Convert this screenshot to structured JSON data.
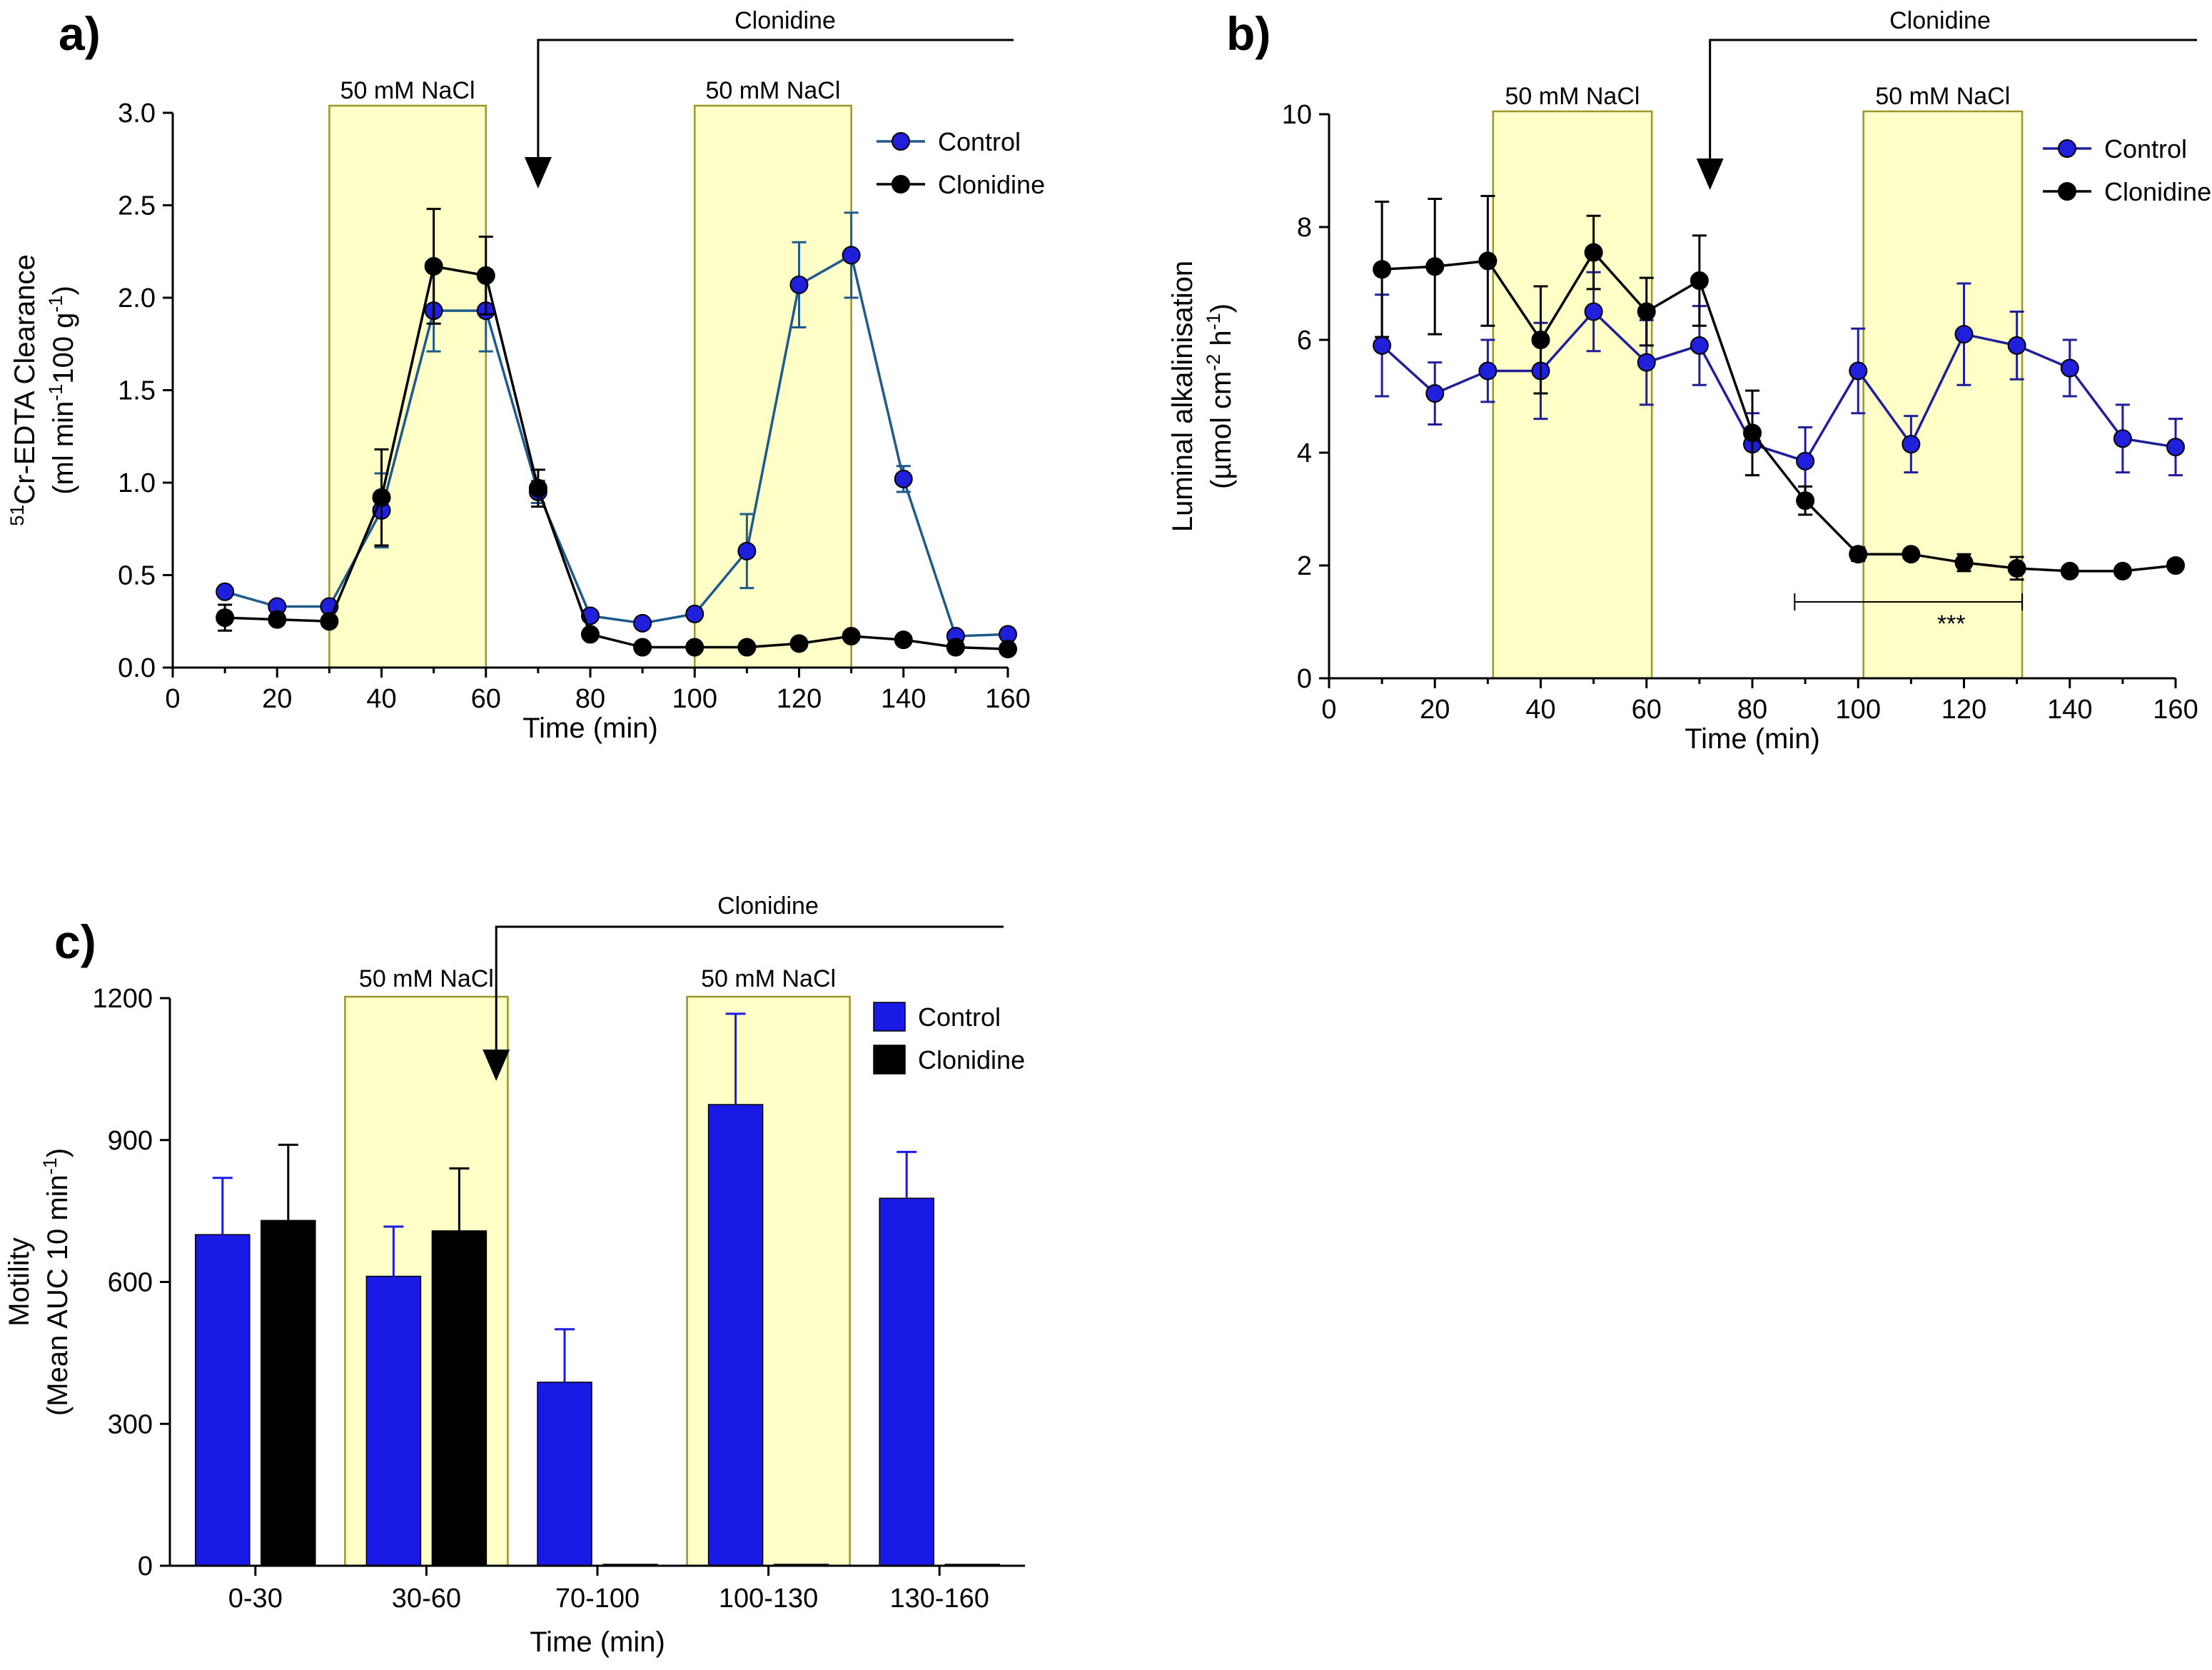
{
  "chart_data": [
    {
      "id": "a",
      "type": "line",
      "panel_label": "a)",
      "xlabel": "Time (min)",
      "ylabel_line1": "Cr-EDTA Clearance",
      "ylabel_sup1": "51",
      "ylabel_line2_parts": [
        "(ml min",
        "-1",
        "100 g",
        "-1",
        ")"
      ],
      "xlim": [
        0,
        160
      ],
      "ylim": [
        0,
        3.0
      ],
      "xticks": [
        0,
        20,
        40,
        60,
        80,
        100,
        120,
        140,
        160
      ],
      "xtick_labels": [
        "0",
        "20",
        "40",
        "60",
        "80",
        "100",
        "120",
        "140",
        "160"
      ],
      "yticks": [
        0,
        0.5,
        1.0,
        1.5,
        2.0,
        2.5,
        3.0
      ],
      "ytick_labels": [
        "0.0",
        "0.5",
        "1.0",
        "1.5",
        "2.0",
        "2.5",
        "3.0"
      ],
      "grid": false,
      "legend_position": "top-right",
      "bands": [
        {
          "start": 30,
          "end": 60,
          "label": "50 mM NaCl"
        },
        {
          "start": 100,
          "end": 130,
          "label": "50 mM NaCl"
        }
      ],
      "treatment": {
        "label": "Clonidine",
        "start": 70
      },
      "series": [
        {
          "name": "Control",
          "color": "#1f1fdc",
          "line_color": "#1f5a8c",
          "x": [
            10,
            20,
            30,
            40,
            50,
            60,
            70,
            80,
            90,
            100,
            110,
            120,
            130,
            140,
            150,
            160
          ],
          "y": [
            0.41,
            0.33,
            0.33,
            0.85,
            1.93,
            1.93,
            0.95,
            0.28,
            0.24,
            0.29,
            0.63,
            2.07,
            2.23,
            1.02,
            0.17,
            0.18
          ],
          "err": [
            0.02,
            0.02,
            0.02,
            0.2,
            0.22,
            0.22,
            0.06,
            0.02,
            0.02,
            0.02,
            0.2,
            0.23,
            0.23,
            0.07,
            0.02,
            0.02
          ]
        },
        {
          "name": "Clonidine",
          "color": "#000000",
          "line_color": "#000000",
          "x": [
            10,
            20,
            30,
            40,
            50,
            60,
            70,
            80,
            90,
            100,
            110,
            120,
            130,
            140,
            150,
            160
          ],
          "y": [
            0.27,
            0.26,
            0.25,
            0.92,
            2.17,
            2.12,
            0.97,
            0.18,
            0.11,
            0.11,
            0.11,
            0.13,
            0.17,
            0.15,
            0.11,
            0.1
          ],
          "err": [
            0.07,
            0.02,
            0.02,
            0.26,
            0.31,
            0.21,
            0.1,
            0.02,
            0.01,
            0.01,
            0.01,
            0.01,
            0.02,
            0.01,
            0.01,
            0.01
          ]
        }
      ]
    },
    {
      "id": "b",
      "type": "line",
      "panel_label": "b)",
      "xlabel": "Time (min)",
      "ylabel_line1": "Luminal alkalinisation",
      "ylabel_line2_parts": [
        "(µmol cm",
        "-2",
        " h",
        "-1",
        ")"
      ],
      "xlim": [
        0,
        160
      ],
      "ylim": [
        0,
        10
      ],
      "xticks": [
        0,
        20,
        40,
        60,
        80,
        100,
        120,
        140,
        160
      ],
      "xtick_labels": [
        "0",
        "20",
        "40",
        "60",
        "80",
        "100",
        "120",
        "140",
        "160"
      ],
      "yticks": [
        0,
        2,
        4,
        6,
        8,
        10
      ],
      "ytick_labels": [
        "0",
        "2",
        "4",
        "6",
        "8",
        "10"
      ],
      "grid": false,
      "legend_position": "top-right",
      "bands": [
        {
          "start": 31,
          "end": 61,
          "label": "50 mM NaCl"
        },
        {
          "start": 101,
          "end": 131,
          "label": "50 mM NaCl"
        }
      ],
      "treatment": {
        "label": "Clonidine",
        "start": 72
      },
      "significance": {
        "label": "***",
        "start": 88,
        "end": 131,
        "y": 1.0
      },
      "series": [
        {
          "name": "Control",
          "color": "#1f1fdc",
          "line_color": "#1f1f9c",
          "x": [
            10,
            20,
            30,
            40,
            50,
            60,
            70,
            80,
            90,
            100,
            110,
            120,
            130,
            140,
            150,
            160
          ],
          "y": [
            5.9,
            5.05,
            5.45,
            5.45,
            6.5,
            5.6,
            5.9,
            4.15,
            3.85,
            5.45,
            4.15,
            6.1,
            5.9,
            5.5,
            4.25,
            4.1
          ],
          "err": [
            0.9,
            0.55,
            0.55,
            0.85,
            0.7,
            0.75,
            0.7,
            0.55,
            0.6,
            0.75,
            0.5,
            0.9,
            0.6,
            0.5,
            0.6,
            0.5
          ]
        },
        {
          "name": "Clonidine",
          "color": "#000000",
          "line_color": "#000000",
          "x": [
            10,
            20,
            30,
            40,
            50,
            60,
            70,
            80,
            90,
            100,
            110,
            120,
            130,
            140,
            150,
            160
          ],
          "y": [
            7.25,
            7.3,
            7.4,
            6.0,
            7.55,
            6.5,
            7.05,
            4.35,
            3.15,
            2.2,
            2.2,
            2.05,
            1.95,
            1.9,
            1.9,
            2.0
          ],
          "err": [
            1.2,
            1.2,
            1.15,
            0.95,
            0.65,
            0.6,
            0.8,
            0.75,
            0.25,
            0.12,
            0.08,
            0.15,
            0.2,
            0.08,
            0.08,
            0.08
          ]
        }
      ]
    },
    {
      "id": "c",
      "type": "bar",
      "panel_label": "c)",
      "xlabel": "Time (min)",
      "ylabel_line1": "Motility",
      "ylabel_line2_parts": [
        "(Mean AUC 10 min",
        "-1",
        ")"
      ],
      "ylim": [
        0,
        1200
      ],
      "yticks": [
        0,
        300,
        600,
        900,
        1200
      ],
      "ytick_labels": [
        "0",
        "300",
        "600",
        "900",
        "1200"
      ],
      "categories": [
        "0-30",
        "30-60",
        "70-100",
        "100-130",
        "130-160"
      ],
      "grid": false,
      "legend_position": "top-right",
      "bands_by_category": [
        {
          "category_index": 1,
          "label": "50 mM NaCl"
        },
        {
          "category_index": 3,
          "label": "50 mM NaCl"
        }
      ],
      "treatment": {
        "label": "Clonidine",
        "after_category_index": 1
      },
      "series": [
        {
          "name": "Control",
          "color": "#1a1ae6",
          "values": [
            700,
            612,
            388,
            975,
            777
          ],
          "err": [
            120,
            105,
            112,
            192,
            98
          ]
        },
        {
          "name": "Clonidine",
          "color": "#000000",
          "values": [
            730,
            708,
            0,
            0,
            0
          ],
          "err": [
            160,
            132,
            0,
            0,
            0
          ]
        }
      ]
    }
  ]
}
